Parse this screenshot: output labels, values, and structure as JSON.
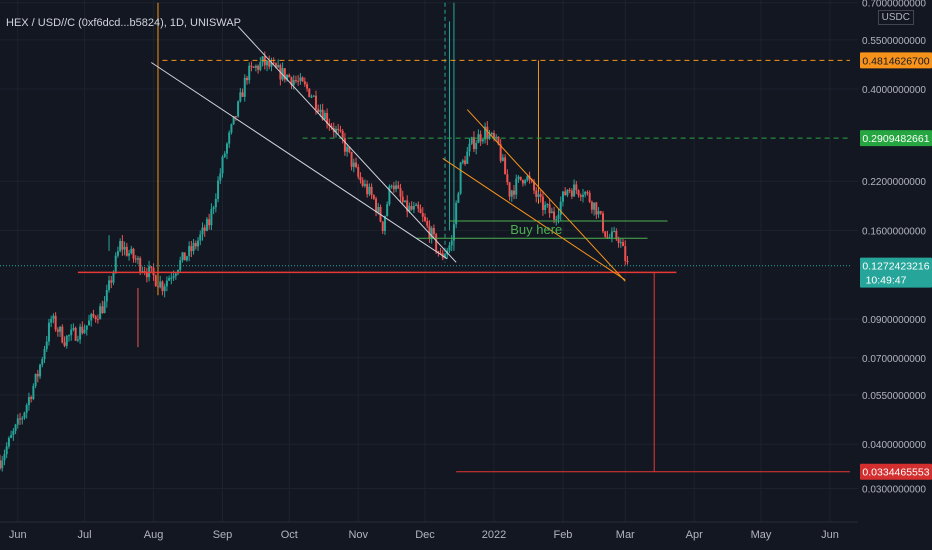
{
  "header": {
    "title": "HEX / USD//C (0xf6dcd...b5824), 1D, UNISWAP",
    "currency": "USDC"
  },
  "colors": {
    "background": "#131722",
    "up": "#26a69a",
    "down": "#ef5350",
    "grid": "#1e222d",
    "axis_text": "#b2b5be"
  },
  "chart_data": {
    "type": "candlestick",
    "scale": "log",
    "ylim": [
      0.028,
      0.7
    ],
    "y_ticks": [
      {
        "value": 0.7,
        "label": "0.7000000000"
      },
      {
        "value": 0.55,
        "label": "0.5500000000"
      },
      {
        "value": 0.4,
        "label": "0.4000000000"
      },
      {
        "value": 0.22,
        "label": "0.2200000000"
      },
      {
        "value": 0.16,
        "label": "0.1600000000"
      },
      {
        "value": 0.09,
        "label": "0.0900000000"
      },
      {
        "value": 0.07,
        "label": "0.0700000000"
      },
      {
        "value": 0.055,
        "label": "0.0550000000"
      },
      {
        "value": 0.04,
        "label": "0.0400000000"
      },
      {
        "value": 0.03,
        "label": "0.0300000000"
      }
    ],
    "x_range": [
      "2021-05-24",
      "2022-06-10"
    ],
    "x_ticks": [
      {
        "date": "2021-06-01",
        "label": "Jun"
      },
      {
        "date": "2021-07-01",
        "label": "Jul"
      },
      {
        "date": "2021-08-01",
        "label": "Aug"
      },
      {
        "date": "2021-09-01",
        "label": "Sep"
      },
      {
        "date": "2021-10-01",
        "label": "Oct"
      },
      {
        "date": "2021-11-01",
        "label": "Nov"
      },
      {
        "date": "2021-12-01",
        "label": "Dec"
      },
      {
        "date": "2022-01-01",
        "label": "2022"
      },
      {
        "date": "2022-02-01",
        "label": "Feb"
      },
      {
        "date": "2022-03-01",
        "label": "Mar"
      },
      {
        "date": "2022-04-01",
        "label": "Apr"
      },
      {
        "date": "2022-05-01",
        "label": "May"
      },
      {
        "date": "2022-06-01",
        "label": "Jun"
      }
    ],
    "price_path": [
      {
        "date": "2021-05-24",
        "price": 0.036
      },
      {
        "date": "2021-06-03",
        "price": 0.048
      },
      {
        "date": "2021-06-10",
        "price": 0.063
      },
      {
        "date": "2021-06-16",
        "price": 0.09
      },
      {
        "date": "2021-06-22",
        "price": 0.079
      },
      {
        "date": "2021-07-01",
        "price": 0.085
      },
      {
        "date": "2021-07-10",
        "price": 0.099
      },
      {
        "date": "2021-07-17",
        "price": 0.146
      },
      {
        "date": "2021-07-24",
        "price": 0.132
      },
      {
        "date": "2021-07-31",
        "price": 0.12
      },
      {
        "date": "2021-08-05",
        "price": 0.112
      },
      {
        "date": "2021-08-12",
        "price": 0.128
      },
      {
        "date": "2021-08-19",
        "price": 0.143
      },
      {
        "date": "2021-08-26",
        "price": 0.168
      },
      {
        "date": "2021-09-02",
        "price": 0.265
      },
      {
        "date": "2021-09-08",
        "price": 0.355
      },
      {
        "date": "2021-09-12",
        "price": 0.44
      },
      {
        "date": "2021-09-19",
        "price": 0.475
      },
      {
        "date": "2021-09-25",
        "price": 0.45
      },
      {
        "date": "2021-10-02",
        "price": 0.43
      },
      {
        "date": "2021-10-10",
        "price": 0.395
      },
      {
        "date": "2021-10-18",
        "price": 0.33
      },
      {
        "date": "2021-10-25",
        "price": 0.285
      },
      {
        "date": "2021-11-01",
        "price": 0.225
      },
      {
        "date": "2021-11-08",
        "price": 0.195
      },
      {
        "date": "2021-11-12",
        "price": 0.165
      },
      {
        "date": "2021-11-16",
        "price": 0.222
      },
      {
        "date": "2021-11-22",
        "price": 0.185
      },
      {
        "date": "2021-11-28",
        "price": 0.18
      },
      {
        "date": "2021-12-04",
        "price": 0.155
      },
      {
        "date": "2021-12-08",
        "price": 0.134
      },
      {
        "date": "2021-12-13",
        "price": 0.148
      },
      {
        "date": "2021-12-17",
        "price": 0.24
      },
      {
        "date": "2021-12-22",
        "price": 0.28
      },
      {
        "date": "2021-12-28",
        "price": 0.305
      },
      {
        "date": "2022-01-03",
        "price": 0.275
      },
      {
        "date": "2022-01-08",
        "price": 0.205
      },
      {
        "date": "2022-01-15",
        "price": 0.23
      },
      {
        "date": "2022-01-22",
        "price": 0.19
      },
      {
        "date": "2022-01-28",
        "price": 0.175
      },
      {
        "date": "2022-02-03",
        "price": 0.21
      },
      {
        "date": "2022-02-10",
        "price": 0.208
      },
      {
        "date": "2022-02-16",
        "price": 0.185
      },
      {
        "date": "2022-02-21",
        "price": 0.152
      },
      {
        "date": "2022-02-26",
        "price": 0.153
      },
      {
        "date": "2022-03-02",
        "price": 0.1272
      }
    ],
    "badges": [
      {
        "name": "orange-level",
        "price": 0.48146267,
        "label": "0.4814626700",
        "color": "#f7931a",
        "text_color": "#131722"
      },
      {
        "name": "green-level",
        "price": 0.2909482661,
        "label": "0.2909482661",
        "color": "#26a641",
        "text_color": "#ffffff"
      },
      {
        "name": "current-price",
        "price": 0.1272423216,
        "label": "0.1272423216",
        "sublabel": "10:49:47",
        "color": "#26a69a",
        "text_color": "#ffffff"
      },
      {
        "name": "target-level",
        "price": 0.0334465553,
        "label": "0.0334465553",
        "color": "#d32f2f",
        "text_color": "#ffffff"
      }
    ],
    "annotations": [
      {
        "name": "buy-here",
        "text": "Buy here",
        "date": "2022-01-20",
        "price": 0.152,
        "color": "#4caf50"
      }
    ]
  }
}
